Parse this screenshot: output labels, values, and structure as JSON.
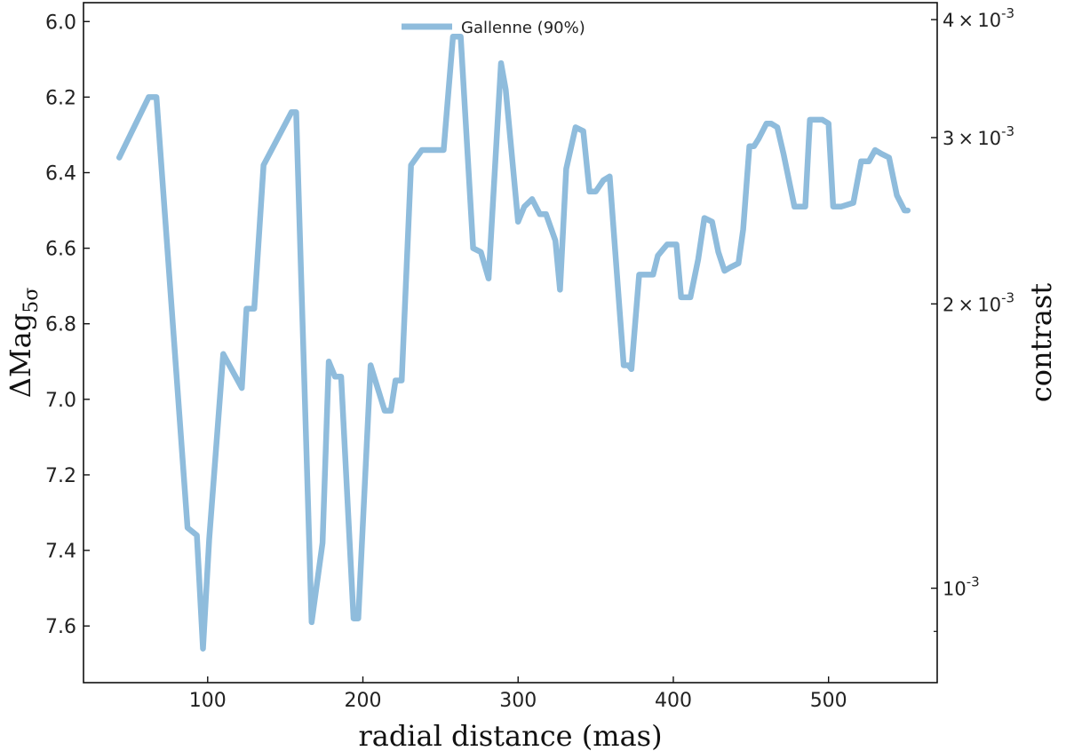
{
  "chart_data": {
    "type": "line",
    "xlabel": "radial distance (mas)",
    "ylabel_main": "ΔMag",
    "ylabel_sub": "5σ",
    "ylabel_right": "contrast",
    "xlim": [
      20,
      570
    ],
    "ylim": [
      7.75,
      5.95
    ],
    "y_inverted": true,
    "x_ticks": [
      100,
      200,
      300,
      400,
      500
    ],
    "x_tick_labels": [
      "100",
      "200",
      "300",
      "400",
      "500"
    ],
    "y_ticks": [
      6.0,
      6.2,
      6.4,
      6.6,
      6.8,
      7.0,
      7.2,
      7.4,
      7.6
    ],
    "y_tick_labels": [
      "6.0",
      "6.2",
      "6.4",
      "6.6",
      "6.8",
      "7.0",
      "7.2",
      "7.4",
      "7.6"
    ],
    "right_axis": {
      "scale": "log",
      "major_ticks": [
        {
          "value": 0.004,
          "mantissa": "4",
          "exponent": "-3"
        },
        {
          "value": 0.003,
          "mantissa": "3",
          "exponent": "-3"
        },
        {
          "value": 0.002,
          "mantissa": "2",
          "exponent": "-3"
        },
        {
          "value": 0.001,
          "mantissa": "",
          "exponent": "-3"
        }
      ],
      "minor_ticks": [
        0.0009
      ]
    },
    "legend_position": "top-center",
    "grid": false,
    "series": [
      {
        "name": "Gallenne (90%)",
        "color": "#8fbcdc",
        "x": [
          43,
          62,
          67,
          87,
          93,
          97,
          101,
          110,
          122,
          125,
          130,
          136,
          154,
          157,
          167,
          174,
          178,
          182,
          186,
          194,
          197,
          205,
          214,
          218,
          221,
          225,
          231,
          238,
          244,
          252,
          258,
          263,
          271,
          276,
          281,
          289,
          292,
          300,
          304,
          309,
          314,
          318,
          324,
          327,
          331,
          337,
          342,
          346,
          350,
          355,
          359,
          368,
          371,
          373,
          378,
          387,
          390,
          394,
          396,
          399,
          402,
          405,
          411,
          416,
          420,
          425,
          429,
          433,
          437,
          442,
          445,
          449,
          452,
          455,
          460,
          463,
          467,
          471,
          475,
          478,
          485,
          488,
          492,
          496,
          500,
          503,
          508,
          516,
          521,
          526,
          530,
          534,
          539,
          544,
          549,
          551
        ],
        "y": [
          6.36,
          6.2,
          6.2,
          7.34,
          7.36,
          7.66,
          7.37,
          6.88,
          6.97,
          6.76,
          6.76,
          6.38,
          6.24,
          6.24,
          7.59,
          7.38,
          6.9,
          6.94,
          6.94,
          7.58,
          7.58,
          6.91,
          7.03,
          7.03,
          6.95,
          6.95,
          6.38,
          6.34,
          6.34,
          6.34,
          6.04,
          6.04,
          6.6,
          6.61,
          6.68,
          6.11,
          6.18,
          6.53,
          6.49,
          6.47,
          6.51,
          6.51,
          6.58,
          6.71,
          6.39,
          6.28,
          6.29,
          6.45,
          6.45,
          6.42,
          6.41,
          6.91,
          6.91,
          6.92,
          6.67,
          6.67,
          6.62,
          6.6,
          6.59,
          6.59,
          6.59,
          6.73,
          6.73,
          6.63,
          6.52,
          6.53,
          6.61,
          6.66,
          6.65,
          6.64,
          6.55,
          6.33,
          6.33,
          6.31,
          6.27,
          6.27,
          6.28,
          6.35,
          6.43,
          6.49,
          6.49,
          6.26,
          6.26,
          6.26,
          6.27,
          6.49,
          6.49,
          6.48,
          6.37,
          6.37,
          6.34,
          6.35,
          6.36,
          6.46,
          6.5,
          6.5
        ]
      }
    ]
  }
}
